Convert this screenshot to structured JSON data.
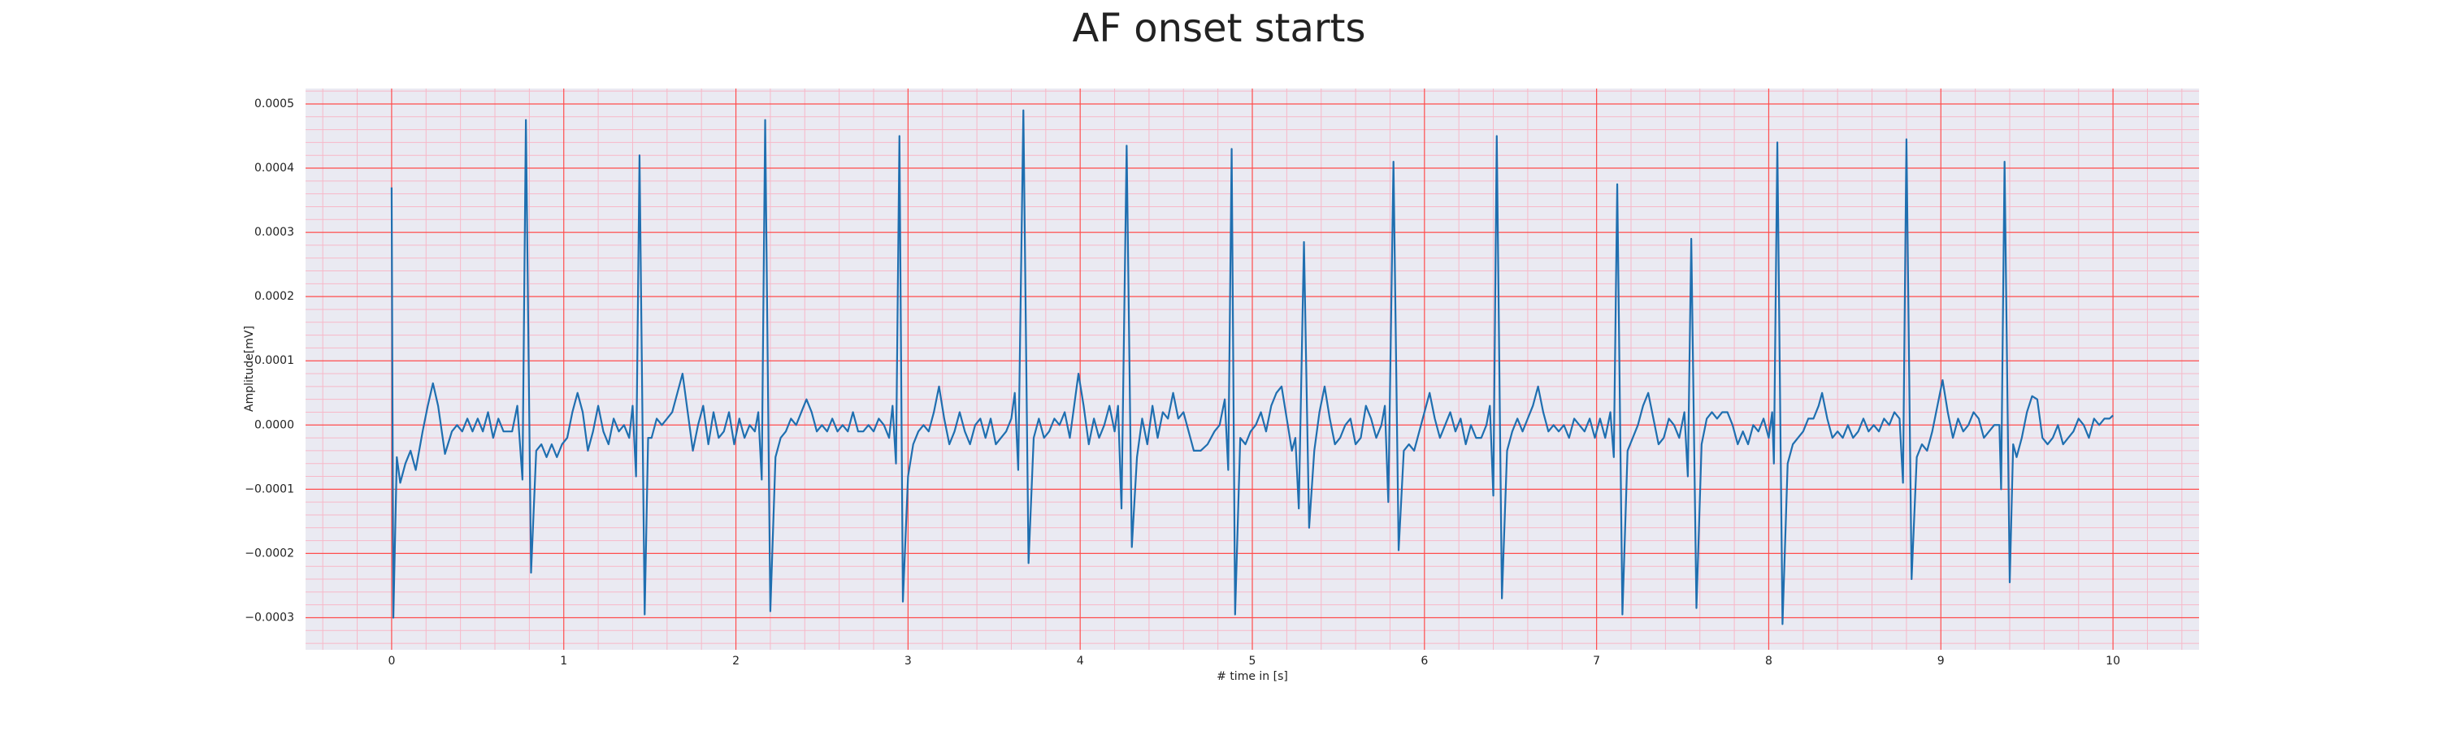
{
  "chart_data": {
    "type": "line",
    "title": "AF onset starts",
    "xlabel": "# time in [s]",
    "ylabel": "Amplitude[mV]",
    "xlim": [
      -0.5,
      10.5
    ],
    "ylim": [
      -0.00035,
      0.000524
    ],
    "xticks": [
      0,
      1,
      2,
      3,
      4,
      5,
      6,
      7,
      8,
      9,
      10
    ],
    "yticks": [
      {
        "value": -0.0003,
        "label": "−0.0003"
      },
      {
        "value": -0.0002,
        "label": "−0.0002"
      },
      {
        "value": -0.0001,
        "label": "−0.0001"
      },
      {
        "value": 0,
        "label": "0.0000"
      },
      0.0001,
      0.0002,
      0.0003,
      0.0004,
      0.0005
    ],
    "grid": true,
    "minor_grid": true,
    "grid_color": "#ff4d4d",
    "minor_grid_color": "#f7b8c8",
    "background": "#eaeaf2",
    "series": [
      {
        "color": "#1f6fb0",
        "x": [
          0.0,
          0.01,
          0.03,
          0.05,
          0.08,
          0.11,
          0.14,
          0.18,
          0.21,
          0.24,
          0.27,
          0.31,
          0.35,
          0.38,
          0.41,
          0.44,
          0.47,
          0.5,
          0.53,
          0.56,
          0.59,
          0.62,
          0.65,
          0.7,
          0.73,
          0.76,
          0.78,
          0.81,
          0.84,
          0.87,
          0.9,
          0.93,
          0.96,
          0.99,
          1.02,
          1.05,
          1.08,
          1.11,
          1.14,
          1.17,
          1.2,
          1.23,
          1.26,
          1.29,
          1.32,
          1.35,
          1.38,
          1.4,
          1.42,
          1.44,
          1.47,
          1.49,
          1.51,
          1.54,
          1.57,
          1.6,
          1.63,
          1.66,
          1.69,
          1.72,
          1.75,
          1.78,
          1.81,
          1.84,
          1.87,
          1.9,
          1.93,
          1.96,
          1.99,
          2.02,
          2.05,
          2.08,
          2.11,
          2.13,
          2.15,
          2.17,
          2.2,
          2.23,
          2.26,
          2.29,
          2.32,
          2.35,
          2.38,
          2.41,
          2.44,
          2.47,
          2.5,
          2.53,
          2.56,
          2.59,
          2.62,
          2.65,
          2.68,
          2.71,
          2.74,
          2.77,
          2.8,
          2.83,
          2.86,
          2.89,
          2.91,
          2.93,
          2.95,
          2.97,
          3.0,
          3.03,
          3.06,
          3.09,
          3.12,
          3.15,
          3.18,
          3.21,
          3.24,
          3.27,
          3.3,
          3.33,
          3.36,
          3.39,
          3.42,
          3.45,
          3.48,
          3.51,
          3.54,
          3.57,
          3.6,
          3.62,
          3.64,
          3.67,
          3.7,
          3.73,
          3.76,
          3.79,
          3.82,
          3.85,
          3.88,
          3.91,
          3.94,
          3.97,
          3.99,
          4.02,
          4.05,
          4.08,
          4.11,
          4.14,
          4.17,
          4.2,
          4.22,
          4.24,
          4.27,
          4.3,
          4.33,
          4.36,
          4.39,
          4.42,
          4.45,
          4.48,
          4.51,
          4.54,
          4.57,
          4.6,
          4.63,
          4.66,
          4.7,
          4.74,
          4.78,
          4.81,
          4.84,
          4.86,
          4.88,
          4.9,
          4.93,
          4.96,
          4.99,
          5.02,
          5.05,
          5.08,
          5.11,
          5.14,
          5.17,
          5.2,
          5.23,
          5.25,
          5.27,
          5.3,
          5.33,
          5.36,
          5.39,
          5.42,
          5.45,
          5.48,
          5.51,
          5.54,
          5.57,
          5.6,
          5.63,
          5.66,
          5.69,
          5.72,
          5.75,
          5.77,
          5.79,
          5.82,
          5.85,
          5.88,
          5.91,
          5.94,
          5.97,
          6.0,
          6.03,
          6.06,
          6.09,
          6.12,
          6.15,
          6.18,
          6.21,
          6.24,
          6.27,
          6.3,
          6.33,
          6.36,
          6.38,
          6.4,
          6.42,
          6.45,
          6.48,
          6.51,
          6.54,
          6.57,
          6.6,
          6.63,
          6.66,
          6.69,
          6.72,
          6.75,
          6.78,
          6.81,
          6.84,
          6.87,
          6.9,
          6.93,
          6.96,
          6.99,
          7.02,
          7.05,
          7.08,
          7.1,
          7.12,
          7.15,
          7.18,
          7.21,
          7.24,
          7.27,
          7.3,
          7.33,
          7.36,
          7.39,
          7.42,
          7.45,
          7.48,
          7.51,
          7.53,
          7.55,
          7.58,
          7.61,
          7.64,
          7.67,
          7.7,
          7.73,
          7.76,
          7.79,
          7.82,
          7.85,
          7.88,
          7.91,
          7.94,
          7.97,
          8.0,
          8.02,
          8.03,
          8.05,
          8.08,
          8.11,
          8.14,
          8.17,
          8.2,
          8.23,
          8.26,
          8.29,
          8.31,
          8.34,
          8.37,
          8.4,
          8.43,
          8.46,
          8.49,
          8.52,
          8.55,
          8.58,
          8.61,
          8.64,
          8.67,
          8.7,
          8.73,
          8.76,
          8.78,
          8.8,
          8.83,
          8.86,
          8.89,
          8.92,
          8.95,
          8.98,
          9.01,
          9.04,
          9.07,
          9.1,
          9.13,
          9.16,
          9.19,
          9.22,
          9.25,
          9.28,
          9.31,
          9.34,
          9.35,
          9.37,
          9.4,
          9.42,
          9.44,
          9.47,
          9.5,
          9.53,
          9.56,
          9.59,
          9.62,
          9.65,
          9.68,
          9.71,
          9.74,
          9.77,
          9.8,
          9.83,
          9.86,
          9.89,
          9.92,
          9.95,
          9.98,
          10.0
        ],
        "values": [
          0.00037,
          -0.0003,
          -5e-05,
          -9e-05,
          -6e-05,
          -4e-05,
          -7e-05,
          -1e-05,
          3e-05,
          6.5e-05,
          3e-05,
          -4.5e-05,
          -1e-05,
          0,
          -1e-05,
          1e-05,
          -1e-05,
          1e-05,
          -1e-05,
          2e-05,
          -2e-05,
          1e-05,
          -1e-05,
          -1e-05,
          3e-05,
          -8.5e-05,
          0.000475,
          -0.00023,
          -4e-05,
          -3e-05,
          -5e-05,
          -3e-05,
          -5e-05,
          -3e-05,
          -2e-05,
          2e-05,
          5e-05,
          2e-05,
          -4e-05,
          -1e-05,
          3e-05,
          -1e-05,
          -3e-05,
          1e-05,
          -1e-05,
          0,
          -2e-05,
          3e-05,
          -8e-05,
          0.00042,
          -0.000295,
          -2e-05,
          -2e-05,
          1e-05,
          0,
          1e-05,
          2e-05,
          5e-05,
          8e-05,
          2e-05,
          -4e-05,
          0,
          3e-05,
          -3e-05,
          2e-05,
          -2e-05,
          -1e-05,
          2e-05,
          -3e-05,
          1e-05,
          -2e-05,
          0,
          -1e-05,
          2e-05,
          -8.5e-05,
          0.000475,
          -0.00029,
          -5e-05,
          -2e-05,
          -1e-05,
          1e-05,
          0,
          2e-05,
          4e-05,
          2e-05,
          -1e-05,
          0,
          -1e-05,
          1e-05,
          -1e-05,
          0,
          -1e-05,
          2e-05,
          -1e-05,
          -1e-05,
          0,
          -1e-05,
          1e-05,
          0,
          -2e-05,
          3e-05,
          -6e-05,
          0.00045,
          -0.000275,
          -8e-05,
          -3e-05,
          -1e-05,
          0,
          -1e-05,
          2e-05,
          6e-05,
          1e-05,
          -3e-05,
          -1e-05,
          2e-05,
          -1e-05,
          -3e-05,
          0,
          1e-05,
          -2e-05,
          1e-05,
          -3e-05,
          -2e-05,
          -1e-05,
          1e-05,
          5e-05,
          -7e-05,
          0.00049,
          -0.000215,
          -2e-05,
          1e-05,
          -2e-05,
          -1e-05,
          1e-05,
          0,
          2e-05,
          -2e-05,
          4e-05,
          8e-05,
          3e-05,
          -3e-05,
          1e-05,
          -2e-05,
          0,
          3e-05,
          -1e-05,
          3e-05,
          -0.00013,
          0.000435,
          -0.00019,
          -5e-05,
          1e-05,
          -3e-05,
          3e-05,
          -2e-05,
          2e-05,
          1e-05,
          5e-05,
          1e-05,
          2e-05,
          -1e-05,
          -4e-05,
          -4e-05,
          -3e-05,
          -1e-05,
          0,
          4e-05,
          -7e-05,
          0.00043,
          -0.000295,
          -2e-05,
          -3e-05,
          -1e-05,
          0,
          2e-05,
          -1e-05,
          3e-05,
          5e-05,
          6e-05,
          1e-05,
          -4e-05,
          -2e-05,
          -0.00013,
          0.000285,
          -0.00016,
          -4e-05,
          2e-05,
          6e-05,
          1e-05,
          -3e-05,
          -2e-05,
          0,
          1e-05,
          -3e-05,
          -2e-05,
          3e-05,
          1e-05,
          -2e-05,
          0,
          3e-05,
          -0.00012,
          0.00041,
          -0.000195,
          -4e-05,
          -3e-05,
          -4e-05,
          -1e-05,
          2e-05,
          5e-05,
          1e-05,
          -2e-05,
          0,
          2e-05,
          -1e-05,
          1e-05,
          -3e-05,
          0,
          -2e-05,
          -2e-05,
          0,
          3e-05,
          -0.00011,
          0.00045,
          -0.00027,
          -4e-05,
          -1e-05,
          1e-05,
          -1e-05,
          1e-05,
          3e-05,
          6e-05,
          2e-05,
          -1e-05,
          0,
          -1e-05,
          0,
          -2e-05,
          1e-05,
          0,
          -1e-05,
          1e-05,
          -2e-05,
          1e-05,
          -2e-05,
          2e-05,
          -5e-05,
          0.000375,
          -0.000295,
          -4e-05,
          -2e-05,
          0,
          3e-05,
          5e-05,
          1e-05,
          -3e-05,
          -2e-05,
          1e-05,
          0,
          -2e-05,
          2e-05,
          -8e-05,
          0.00029,
          -0.000285,
          -3e-05,
          1e-05,
          2e-05,
          1e-05,
          2e-05,
          2e-05,
          0,
          -3e-05,
          -1e-05,
          -3e-05,
          0,
          -1e-05,
          1e-05,
          -2e-05,
          2e-05,
          -6e-05,
          0.00044,
          -0.00031,
          -6e-05,
          -3e-05,
          -2e-05,
          -1e-05,
          1e-05,
          1e-05,
          3e-05,
          5e-05,
          1e-05,
          -2e-05,
          -1e-05,
          -2e-05,
          0,
          -2e-05,
          -1e-05,
          1e-05,
          -1e-05,
          0,
          -1e-05,
          1e-05,
          0,
          2e-05,
          1e-05,
          -9e-05,
          0.000445,
          -0.00024,
          -5e-05,
          -3e-05,
          -4e-05,
          -1e-05,
          3e-05,
          7e-05,
          2e-05,
          -2e-05,
          1e-05,
          -1e-05,
          0,
          2e-05,
          1e-05,
          -2e-05,
          -1e-05,
          0,
          0,
          -0.0001,
          0.00041,
          -0.000245,
          -3e-05,
          -5e-05,
          -2e-05,
          2e-05,
          4.5e-05,
          4e-05,
          -2e-05,
          -3e-05,
          -2e-05,
          0,
          -3e-05,
          -2e-05,
          -1e-05,
          1e-05,
          0,
          -2e-05,
          1e-05,
          0,
          1e-05,
          1e-05,
          1.5e-05
        ]
      }
    ]
  }
}
